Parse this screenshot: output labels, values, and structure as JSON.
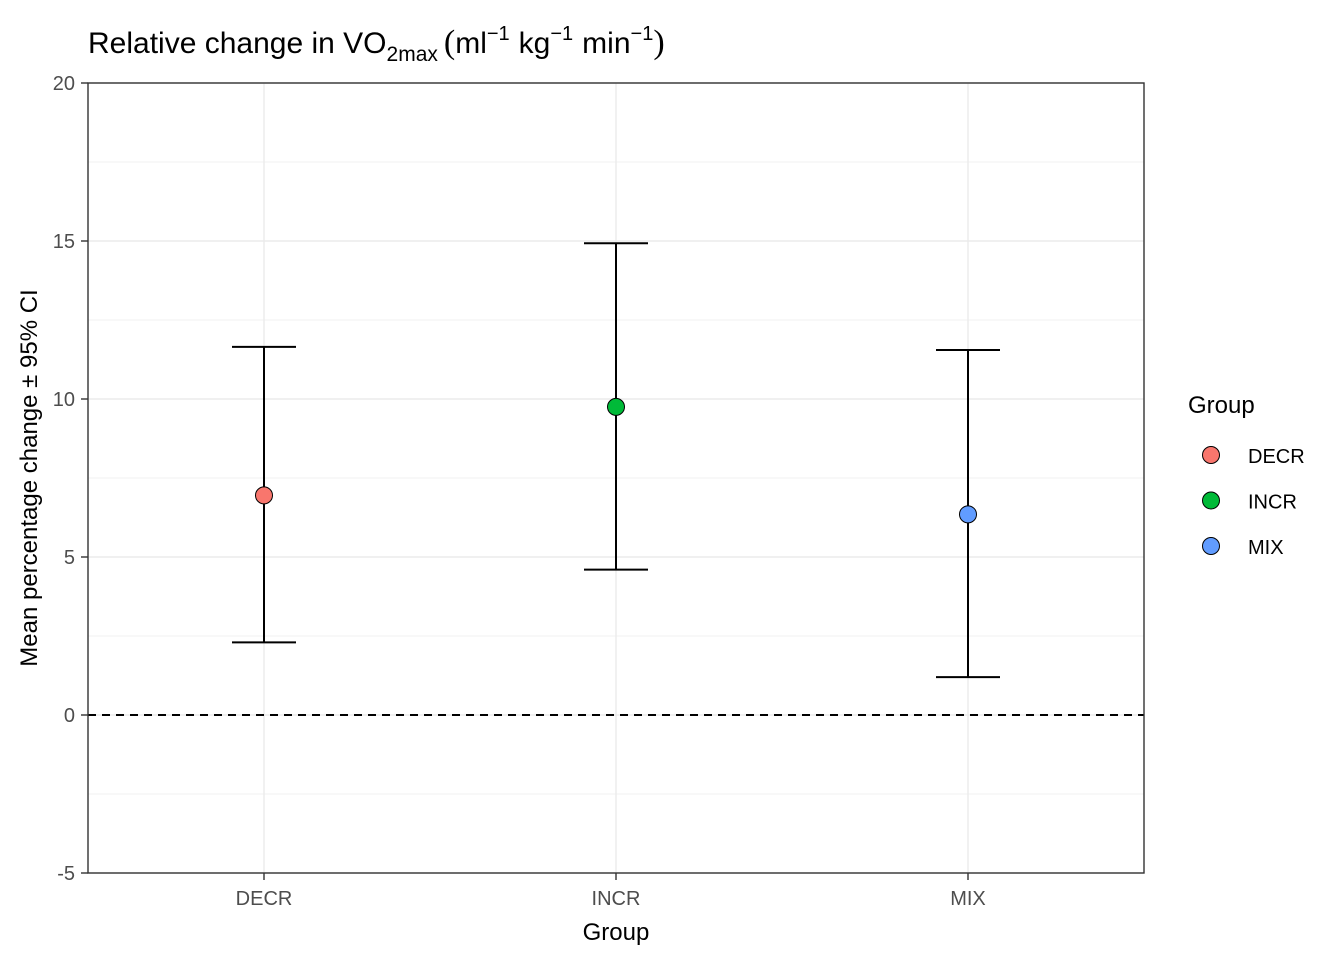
{
  "chart_data": {
    "type": "scatter",
    "variant": "point-with-error-bars",
    "title": {
      "prefix": "Relative change in VO",
      "subscript": "2max",
      "open_paren": "(",
      "unit_ml": "ml",
      "unit_kg": "kg",
      "unit_min": "min",
      "exponent": "−1",
      "close_paren": ")"
    },
    "xlabel": "Group",
    "ylabel": "Mean percentage change ± 95% CI",
    "categories": [
      "DECR",
      "INCR",
      "MIX"
    ],
    "series": [
      {
        "name": "DECR",
        "category": "DECR",
        "mean": 6.95,
        "lower": 2.3,
        "upper": 11.65,
        "color": "#F8766D"
      },
      {
        "name": "INCR",
        "category": "INCR",
        "mean": 9.75,
        "lower": 4.6,
        "upper": 14.93,
        "color": "#00BA38"
      },
      {
        "name": "MIX",
        "category": "MIX",
        "mean": 6.35,
        "lower": 1.2,
        "upper": 11.55,
        "color": "#619CFF"
      }
    ],
    "reference_line": {
      "y": 0,
      "style": "dashed"
    },
    "ylim": [
      -5,
      20
    ],
    "yticks": [
      -5,
      0,
      5,
      10,
      15,
      20
    ],
    "ytick_labels": [
      "-5",
      "0",
      "5",
      "10",
      "15",
      "20"
    ],
    "grid": true,
    "legend": {
      "title": "Group",
      "position": "right",
      "entries": [
        "DECR",
        "INCR",
        "MIX"
      ]
    }
  }
}
